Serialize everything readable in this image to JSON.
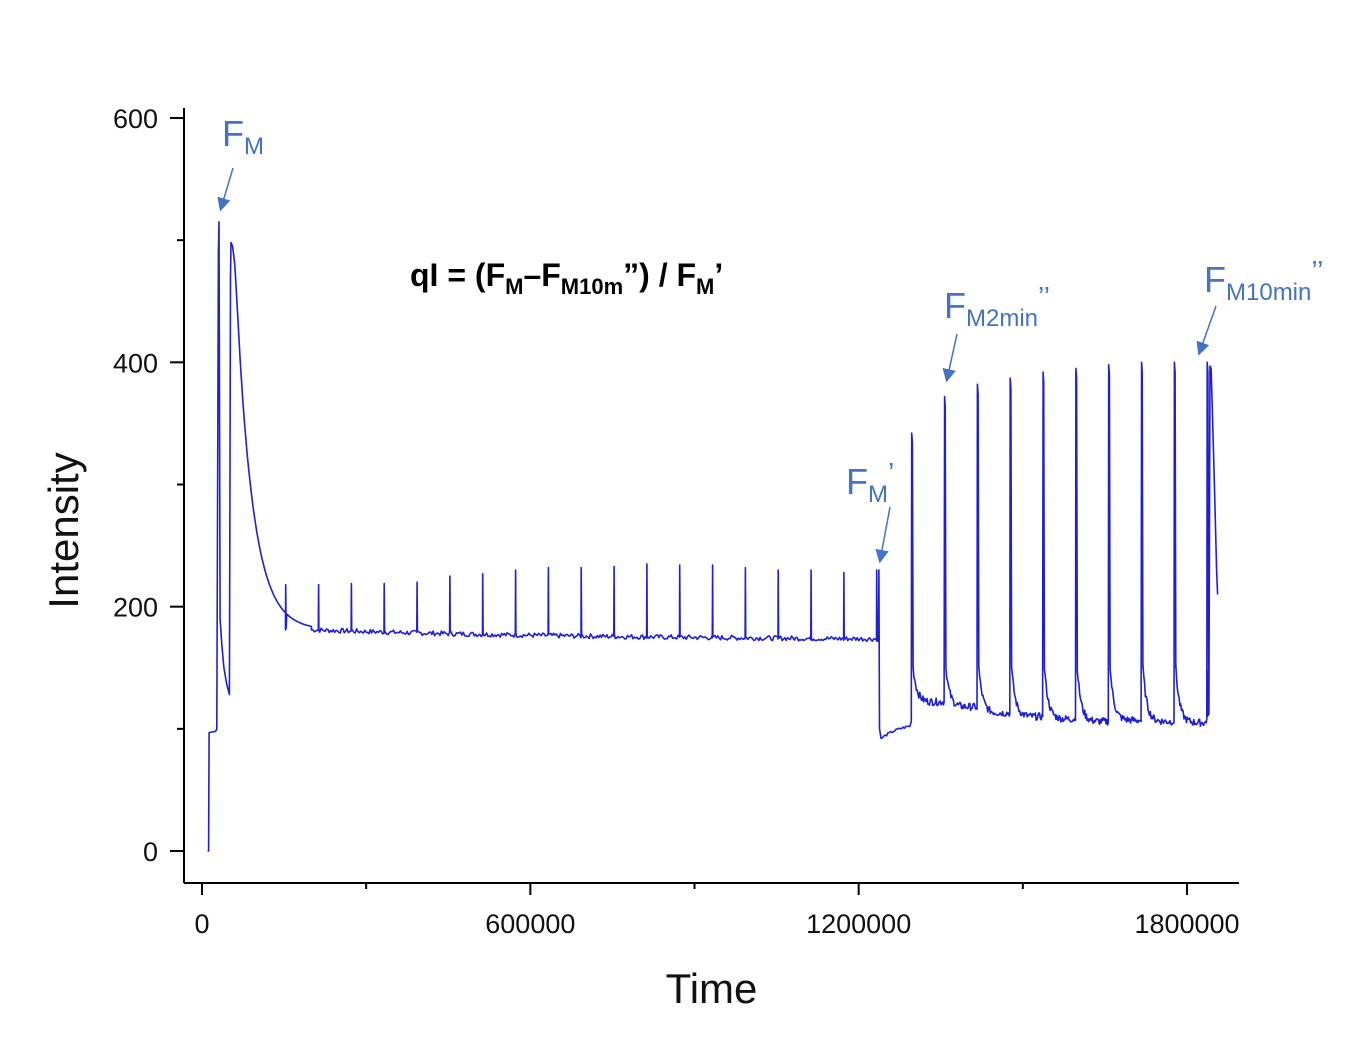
{
  "chart_data": {
    "type": "line",
    "xlabel": "Time",
    "ylabel": "Intensity",
    "xlim": [
      -20000,
      1900000
    ],
    "ylim": [
      -25,
      605
    ],
    "x_ticks": [
      0,
      600000,
      1200000,
      1800000
    ],
    "x_minor_ticks": [
      300000,
      900000,
      1500000
    ],
    "y_ticks": [
      0,
      200,
      400,
      600
    ],
    "y_minor_ticks": [
      100,
      300,
      500
    ],
    "grid": false,
    "line_color": "#1f1fd6",
    "annotation_color": "#4472c4",
    "formula": {
      "lhs": "qI = (F",
      "sub1": "M",
      "mid": "–F",
      "sub2": "M10m",
      "mid2": "”) / F",
      "sub3": "M",
      "end": "’"
    },
    "annotations": [
      {
        "name": "fm",
        "base": "F",
        "sub": "M",
        "sup": "",
        "x": 30000,
        "y": 518
      },
      {
        "name": "fm-prime",
        "base": "F",
        "sub": "M",
        "sup": "’",
        "x": 1235000,
        "y": 230
      },
      {
        "name": "fm-2min",
        "base": "F",
        "sub": "M2min",
        "sup": "’’",
        "x": 1357000,
        "y": 378
      },
      {
        "name": "fm-10min",
        "base": "F",
        "sub": "M10min",
        "sup": "’’",
        "x": 1818000,
        "y": 400
      }
    ],
    "series": [
      {
        "segments": [
          {
            "kind": "points",
            "pts": [
              [
                10000,
                0
              ],
              [
                12000,
                0
              ],
              [
                13000,
                97
              ],
              [
                25000,
                98
              ],
              [
                27000,
                100
              ],
              [
                30000,
                490
              ],
              [
                31000,
                515
              ],
              [
                33000,
                190
              ],
              [
                36000,
                170
              ],
              [
                40000,
                150
              ],
              [
                45000,
                137
              ],
              [
                50000,
                128
              ],
              [
                52000,
                470
              ],
              [
                53000,
                498
              ],
              [
                56000,
                495
              ],
              [
                60000,
                480
              ],
              [
                65000,
                440
              ],
              [
                70000,
                400
              ]
            ]
          },
          {
            "kind": "decay",
            "x0": 70000,
            "x1": 200000,
            "yStart": 400,
            "yEnd": 181,
            "tau": 30000
          },
          {
            "kind": "decay",
            "x0": 200000,
            "x1": 1235000,
            "yStart": 181,
            "yEnd": 172,
            "tau": 600000,
            "noise": 2
          },
          {
            "kind": "points",
            "pts": [
              [
                1235000,
                172
              ],
              [
                1236000,
                175
              ],
              [
                1237000,
                230
              ],
              [
                1238000,
                100
              ],
              [
                1241000,
                92
              ]
            ]
          },
          {
            "kind": "decay",
            "x0": 1241000,
            "x1": 1295000,
            "yStart": 92,
            "yEnd": 106,
            "tau": 40000,
            "noise": 1
          }
        ],
        "spikes_low": {
          "x": [
            153000,
            213000,
            273000,
            333000,
            393000,
            453000,
            513000,
            573000,
            633000,
            693000,
            753000,
            813000,
            873000,
            933000,
            993000,
            1053000,
            1113000,
            1173000,
            1233000
          ],
          "peak": [
            218,
            218,
            219,
            219,
            220,
            225,
            227,
            230,
            232,
            232,
            233,
            235,
            234,
            234,
            232,
            230,
            230,
            228,
            230
          ]
        },
        "spikes_high": {
          "x": [
            1297000,
            1357000,
            1417000,
            1477000,
            1537000,
            1597000,
            1657000,
            1717000,
            1777000,
            1837000
          ],
          "peak": [
            342,
            372,
            382,
            387,
            392,
            395,
            398,
            400,
            400,
            400
          ],
          "trough": [
            122,
            118,
            113,
            110,
            108,
            106,
            107,
            106,
            105,
            109
          ],
          "base": [
            106,
            122,
            116,
            112,
            110,
            107,
            106,
            106,
            105,
            108
          ]
        },
        "tail": [
          [
            1837000,
            110
          ],
          [
            1840000,
            112
          ],
          [
            1842000,
            397
          ],
          [
            1844000,
            395
          ],
          [
            1846000,
            365
          ],
          [
            1850000,
            300
          ],
          [
            1854000,
            230
          ],
          [
            1856000,
            210
          ]
        ]
      }
    ]
  }
}
